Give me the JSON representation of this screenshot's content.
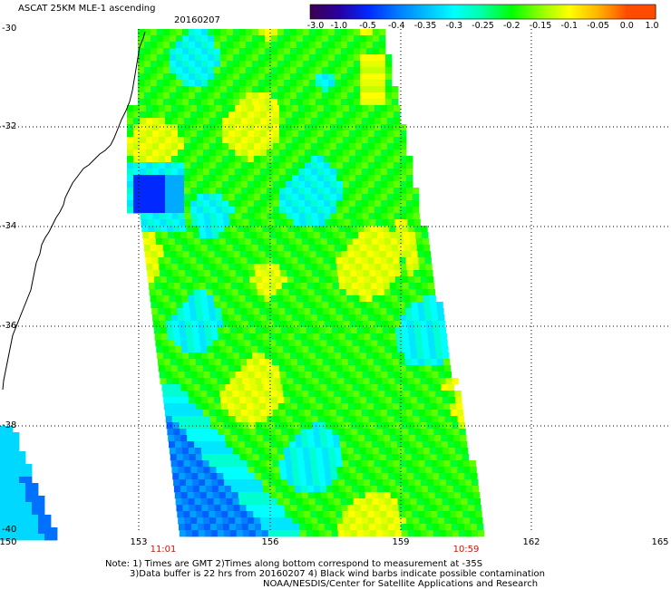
{
  "header": {
    "title": "ASCAT 25KM MLE-1 ascending",
    "date": "20160207"
  },
  "colorbar": {
    "ticks": [
      "-3.0",
      "-1.0",
      "-0.5",
      "-0.4",
      "-0.35",
      "-0.3",
      "-0.25",
      "-0.2",
      "-0.15",
      "-0.1",
      "-0.05",
      "0.0",
      "1.0"
    ],
    "colors": [
      "#3c0050",
      "#2800a0",
      "#0028ff",
      "#0078ff",
      "#00bcff",
      "#00ffff",
      "#00ffa0",
      "#00ff00",
      "#90ff00",
      "#ffff00",
      "#ffb400",
      "#ff4b00"
    ]
  },
  "map": {
    "lat_labels": [
      "-30",
      "-32",
      "-34",
      "-36",
      "-38",
      "-40"
    ],
    "lon_labels": [
      "150",
      "153",
      "156",
      "159",
      "162",
      "165"
    ],
    "pass_times": {
      "left": "11:01",
      "right": "10:59"
    }
  },
  "notes": [
    "Note: 1) Times are GMT 2)Times along bottom correspond to measurement at -35S",
    "3)Data buffer is 22 hrs from 20160207 4) Black wind barbs indicate possible contamination",
    "NOAA/NESDIS/Center for Satellite Applications and Research"
  ]
}
